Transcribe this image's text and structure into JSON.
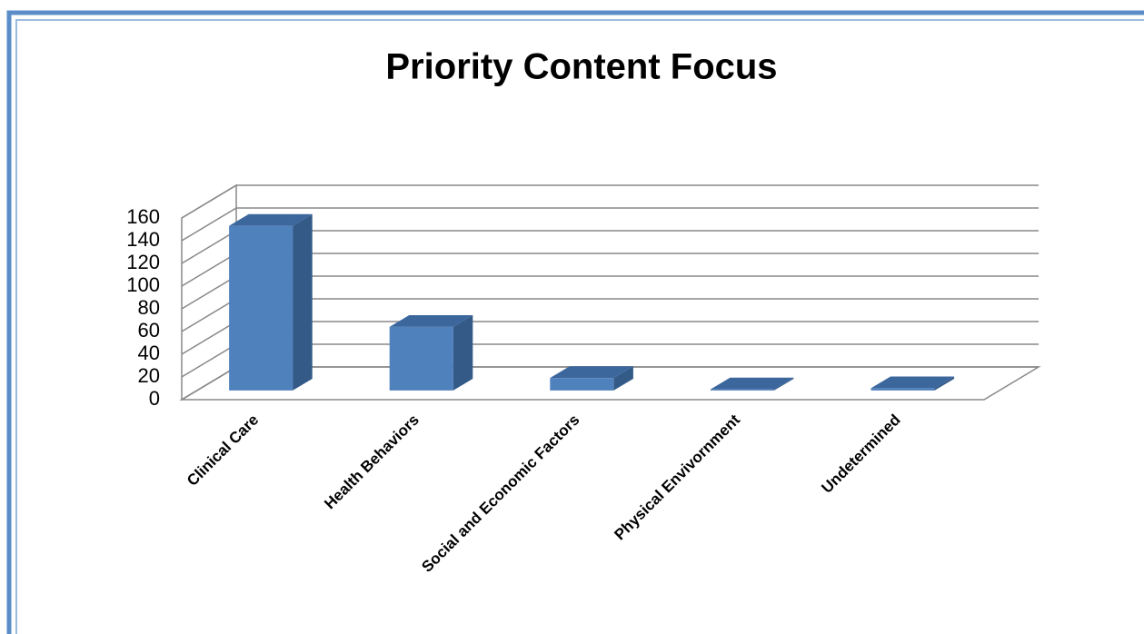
{
  "chart_data": {
    "type": "bar3d",
    "title": "Priority Content Focus",
    "categories": [
      "Clinical Care",
      "Health Behaviors",
      "Social and Economic Factors",
      "Physical Envivornment",
      "Undetermined"
    ],
    "values": [
      145,
      56,
      11,
      1,
      2
    ],
    "color": "#4f81bd",
    "ylim": [
      0,
      160
    ],
    "yticks": [
      0,
      20,
      40,
      60,
      80,
      100,
      120,
      140,
      160
    ],
    "grid": true
  }
}
